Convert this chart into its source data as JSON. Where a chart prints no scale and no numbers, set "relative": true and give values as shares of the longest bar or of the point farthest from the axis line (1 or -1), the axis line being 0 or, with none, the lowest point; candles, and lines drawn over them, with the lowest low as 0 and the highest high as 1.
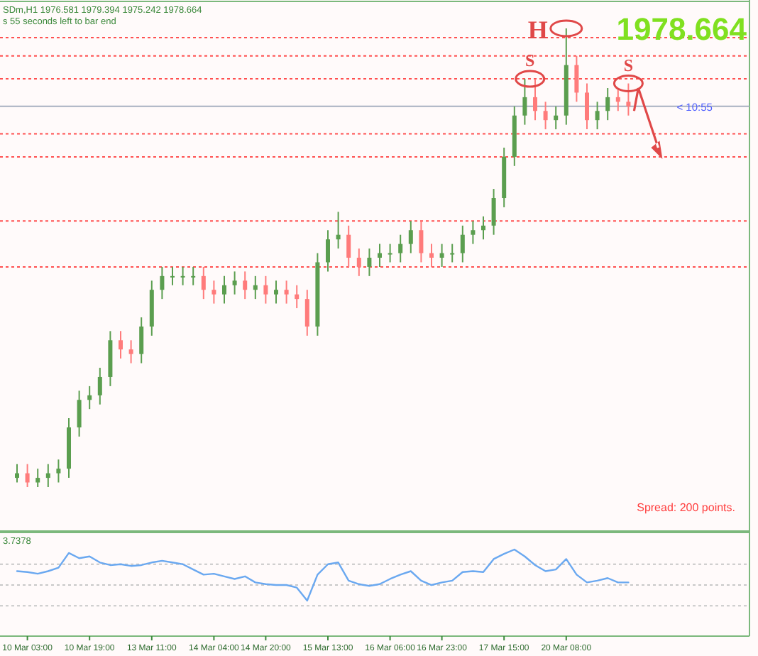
{
  "chart_data": [
    {
      "type": "candlestick",
      "relative": true,
      "categories": [
        null,
        null,
        null,
        null,
        null,
        null,
        null,
        null,
        null,
        null,
        null,
        null,
        null,
        null,
        null,
        null,
        null,
        null,
        null,
        null,
        null,
        null,
        null,
        null,
        null,
        null,
        null,
        null,
        null,
        null,
        null,
        null,
        null,
        null,
        null,
        null,
        null,
        null,
        null,
        null,
        null,
        null,
        null,
        null,
        null,
        null,
        null,
        null,
        null,
        null,
        null,
        null,
        null,
        null,
        null,
        null,
        null,
        null,
        null,
        null
      ],
      "ohlc": [
        [
          0.02,
          0.05,
          0.01,
          0.03
        ],
        [
          0.03,
          0.05,
          0.0,
          0.01
        ],
        [
          0.01,
          0.04,
          0.0,
          0.02
        ],
        [
          0.02,
          0.05,
          0.0,
          0.03
        ],
        [
          0.03,
          0.06,
          0.01,
          0.04
        ],
        [
          0.04,
          0.15,
          0.02,
          0.13
        ],
        [
          0.13,
          0.21,
          0.11,
          0.19
        ],
        [
          0.19,
          0.22,
          0.17,
          0.2
        ],
        [
          0.2,
          0.26,
          0.18,
          0.24
        ],
        [
          0.24,
          0.34,
          0.22,
          0.32
        ],
        [
          0.32,
          0.34,
          0.28,
          0.3
        ],
        [
          0.3,
          0.32,
          0.27,
          0.29
        ],
        [
          0.29,
          0.37,
          0.27,
          0.35
        ],
        [
          0.35,
          0.45,
          0.33,
          0.43
        ],
        [
          0.43,
          0.48,
          0.41,
          0.46
        ],
        [
          0.46,
          0.48,
          0.44,
          0.46
        ],
        [
          0.46,
          0.48,
          0.44,
          0.46
        ],
        [
          0.46,
          0.48,
          0.44,
          0.46
        ],
        [
          0.46,
          0.48,
          0.41,
          0.43
        ],
        [
          0.43,
          0.45,
          0.4,
          0.42
        ],
        [
          0.42,
          0.46,
          0.4,
          0.44
        ],
        [
          0.44,
          0.47,
          0.42,
          0.45
        ],
        [
          0.45,
          0.47,
          0.41,
          0.43
        ],
        [
          0.43,
          0.46,
          0.41,
          0.44
        ],
        [
          0.44,
          0.46,
          0.4,
          0.42
        ],
        [
          0.42,
          0.45,
          0.4,
          0.43
        ],
        [
          0.43,
          0.45,
          0.4,
          0.42
        ],
        [
          0.42,
          0.44,
          0.39,
          0.41
        ],
        [
          0.41,
          0.43,
          0.33,
          0.35
        ],
        [
          0.35,
          0.51,
          0.33,
          0.49
        ],
        [
          0.49,
          0.56,
          0.47,
          0.54
        ],
        [
          0.54,
          0.6,
          0.52,
          0.55
        ],
        [
          0.55,
          0.57,
          0.48,
          0.5
        ],
        [
          0.5,
          0.52,
          0.46,
          0.48
        ],
        [
          0.48,
          0.52,
          0.46,
          0.5
        ],
        [
          0.5,
          0.53,
          0.48,
          0.51
        ],
        [
          0.51,
          0.53,
          0.49,
          0.51
        ],
        [
          0.51,
          0.55,
          0.49,
          0.53
        ],
        [
          0.53,
          0.58,
          0.51,
          0.56
        ],
        [
          0.56,
          0.58,
          0.49,
          0.51
        ],
        [
          0.51,
          0.53,
          0.48,
          0.5
        ],
        [
          0.5,
          0.53,
          0.48,
          0.51
        ],
        [
          0.51,
          0.53,
          0.49,
          0.51
        ],
        [
          0.51,
          0.57,
          0.49,
          0.55
        ],
        [
          0.55,
          0.58,
          0.53,
          0.56
        ],
        [
          0.56,
          0.59,
          0.54,
          0.57
        ],
        [
          0.57,
          0.65,
          0.55,
          0.63
        ],
        [
          0.63,
          0.74,
          0.61,
          0.72
        ],
        [
          0.72,
          0.83,
          0.7,
          0.81
        ],
        [
          0.81,
          0.89,
          0.79,
          0.85
        ],
        [
          0.85,
          0.89,
          0.8,
          0.82
        ],
        [
          0.82,
          0.84,
          0.78,
          0.8
        ],
        [
          0.8,
          0.83,
          0.78,
          0.81
        ],
        [
          0.81,
          1.0,
          0.79,
          0.92
        ],
        [
          0.92,
          0.94,
          0.84,
          0.86
        ],
        [
          0.86,
          0.88,
          0.78,
          0.8
        ],
        [
          0.8,
          0.84,
          0.78,
          0.82
        ],
        [
          0.82,
          0.87,
          0.8,
          0.85
        ],
        [
          0.85,
          0.87,
          0.82,
          0.84
        ],
        [
          0.84,
          0.88,
          0.81,
          0.83
        ]
      ],
      "colors": [
        "#5b9e4f",
        "#ff7b7b",
        "#5b9e4f",
        "#5b9e4f",
        "#5b9e4f",
        "#5b9e4f",
        "#5b9e4f",
        "#5b9e4f",
        "#5b9e4f",
        "#5b9e4f",
        "#ff7b7b",
        "#ff7b7b",
        "#5b9e4f",
        "#5b9e4f",
        "#5b9e4f",
        "#5b9e4f",
        "#5b9e4f",
        "#5b9e4f",
        "#ff7b7b",
        "#ff7b7b",
        "#5b9e4f",
        "#5b9e4f",
        "#ff7b7b",
        "#5b9e4f",
        "#ff7b7b",
        "#5b9e4f",
        "#ff7b7b",
        "#ff7b7b",
        "#ff7b7b",
        "#5b9e4f",
        "#5b9e4f",
        "#5b9e4f",
        "#ff7b7b",
        "#ff7b7b",
        "#5b9e4f",
        "#5b9e4f",
        "#5b9e4f",
        "#5b9e4f",
        "#5b9e4f",
        "#ff7b7b",
        "#ff7b7b",
        "#5b9e4f",
        "#5b9e4f",
        "#5b9e4f",
        "#5b9e4f",
        "#5b9e4f",
        "#5b9e4f",
        "#5b9e4f",
        "#5b9e4f",
        "#5b9e4f",
        "#ff7b7b",
        "#ff7b7b",
        "#5b9e4f",
        "#5b9e4f",
        "#ff7b7b",
        "#ff7b7b",
        "#5b9e4f",
        "#5b9e4f",
        "#ff7b7b",
        "#ff7b7b"
      ],
      "ref_lines": [
        {
          "axis": "y",
          "value": 0.98,
          "color": "#ff5050",
          "line_style": "dotted"
        },
        {
          "axis": "y",
          "value": 0.94,
          "color": "#ff5050",
          "line_style": "dotted"
        },
        {
          "axis": "y",
          "value": 0.89,
          "color": "#ff5050",
          "line_style": "dotted"
        },
        {
          "axis": "y",
          "value": 0.83,
          "color": "#a8b0c0",
          "line_style": "solid"
        },
        {
          "axis": "y",
          "value": 0.77,
          "color": "#ff5050",
          "line_style": "dotted"
        },
        {
          "axis": "y",
          "value": 0.72,
          "color": "#ff5050",
          "line_style": "dotted"
        },
        {
          "axis": "y",
          "value": 0.58,
          "color": "#ff5050",
          "line_style": "dotted"
        },
        {
          "axis": "y",
          "value": 0.48,
          "color": "#ff5050",
          "line_style": "dotted"
        }
      ],
      "annotations": [
        "SDm,H1  1976.581 1979.394 1975.242 1978.664",
        "s 55 seconds left to bar end",
        "H",
        "S",
        "S",
        "1978.664",
        "< 10:55",
        "Spread: 200 points."
      ]
    },
    {
      "type": "line",
      "relative": true,
      "tick_labels": "x",
      "categories": [
        null,
        "10 Mar 03:00",
        null,
        null,
        null,
        null,
        null,
        "10 Mar 19:00",
        null,
        null,
        null,
        null,
        null,
        "13 Mar 11:00",
        null,
        null,
        null,
        null,
        null,
        "14 Mar 04:00",
        null,
        null,
        null,
        null,
        "14 Mar 20:00",
        null,
        null,
        null,
        null,
        null,
        "15 Mar 13:00",
        null,
        null,
        null,
        null,
        null,
        "16 Mar 06:00",
        null,
        null,
        null,
        null,
        "16 Mar 23:00",
        null,
        null,
        null,
        null,
        null,
        "17 Mar 15:00",
        null,
        null,
        null,
        null,
        null,
        "20 Mar 08:00",
        null,
        null,
        null,
        null,
        null,
        null
      ],
      "series": [
        {
          "color": "#6aa8f0",
          "values": [
            0.75,
            0.74,
            0.72,
            0.75,
            0.79,
            0.96,
            0.9,
            0.92,
            0.85,
            0.82,
            0.83,
            0.81,
            0.82,
            0.85,
            0.87,
            0.85,
            0.83,
            0.77,
            0.71,
            0.72,
            0.69,
            0.66,
            0.69,
            0.62,
            0.6,
            0.59,
            0.59,
            0.56,
            0.41,
            0.71,
            0.83,
            0.85,
            0.64,
            0.6,
            0.58,
            0.6,
            0.66,
            0.71,
            0.75,
            0.64,
            0.59,
            0.62,
            0.64,
            0.74,
            0.75,
            0.74,
            0.89,
            0.95,
            1.0,
            0.92,
            0.82,
            0.75,
            0.77,
            0.89,
            0.71,
            0.62,
            0.64,
            0.67,
            0.62,
            0.62
          ]
        }
      ],
      "ref_lines": [
        {
          "axis": "y",
          "value": 0.83,
          "color": "#c8c8c8",
          "line_style": "dotted"
        },
        {
          "axis": "y",
          "value": 0.59,
          "color": "#c8c8c8",
          "line_style": "dotted"
        },
        {
          "axis": "y",
          "value": 0.35,
          "color": "#c8c8c8",
          "line_style": "dotted"
        }
      ],
      "annotations": [
        "3.7378"
      ]
    }
  ]
}
